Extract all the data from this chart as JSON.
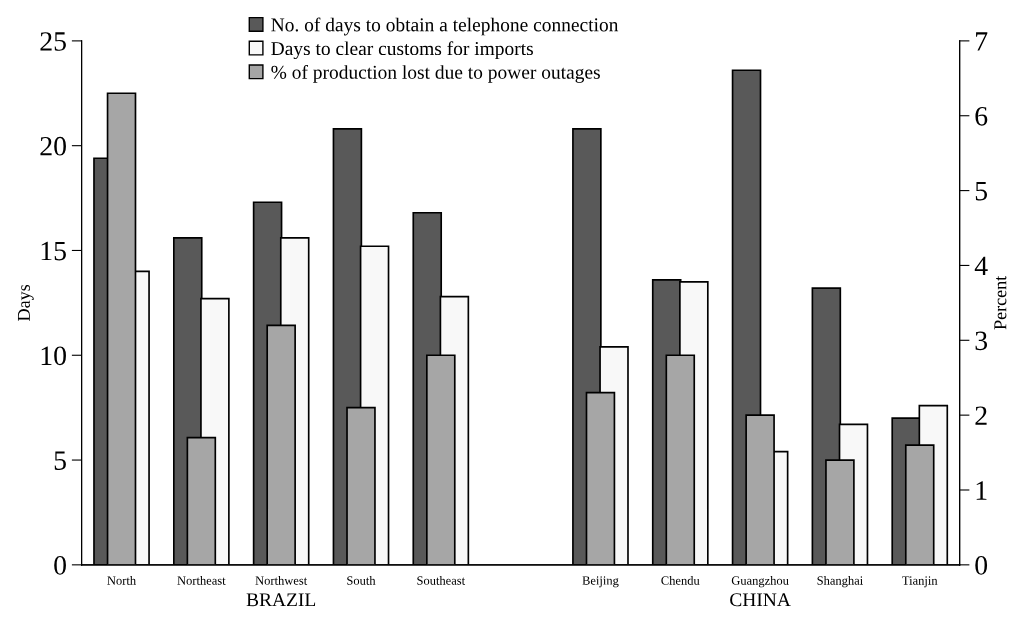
{
  "chart_data": {
    "type": "bar",
    "categories": [
      "North",
      "Northeast",
      "Northwest",
      "South",
      "Southeast",
      null,
      "Beijing",
      "Chendu",
      "Guangzhou",
      "Shanghai",
      "Tianjin"
    ],
    "series": [
      {
        "name": "No. of days to obtain a telephone connection",
        "color": "#595959",
        "values": [
          19.4,
          15.6,
          17.3,
          20.8,
          16.8,
          null,
          20.8,
          13.6,
          23.6,
          13.2,
          7.0
        ]
      },
      {
        "name": "Days to clear customs for imports",
        "color": "#f8f8f8",
        "values": [
          14.0,
          12.7,
          15.6,
          15.2,
          12.8,
          null,
          10.4,
          13.5,
          5.4,
          6.7,
          7.6
        ]
      },
      {
        "name": "% of production lost due to power outages",
        "color": "#a6a6a6",
        "axis": "y2",
        "values": [
          6.3,
          1.7,
          3.2,
          2.1,
          2.8,
          null,
          2.3,
          2.8,
          2.0,
          1.4,
          1.6
        ]
      }
    ],
    "ylabel": "Days",
    "y2label": "Percent",
    "ylim": [
      0,
      25
    ],
    "yticks": [
      0,
      5,
      10,
      15,
      20,
      25
    ],
    "y2lim": [
      0,
      7
    ],
    "y2ticks": [
      0,
      1,
      2,
      3,
      4,
      5,
      6,
      7
    ],
    "annotations": [
      "BRAZIL",
      "CHINA"
    ],
    "legend": "top",
    "grid": false
  }
}
